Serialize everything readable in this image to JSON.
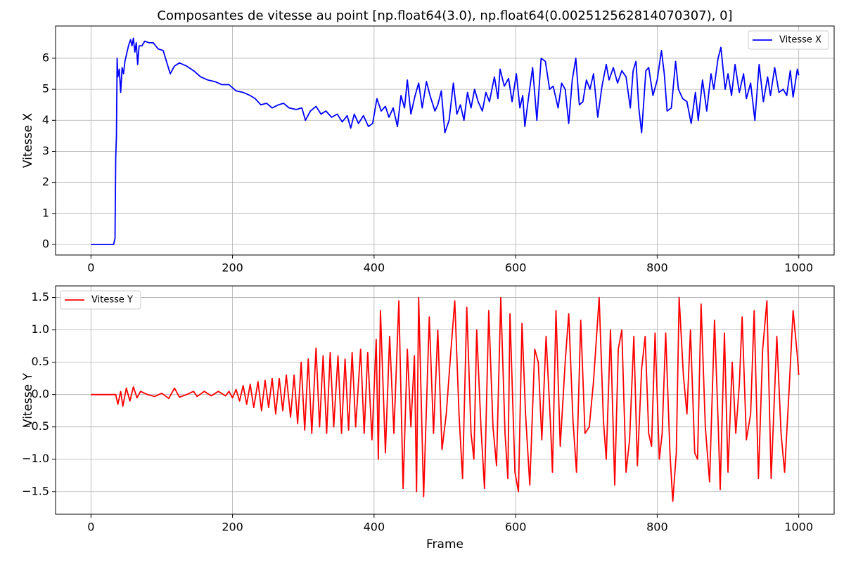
{
  "chart_data": [
    {
      "type": "line",
      "title": "Composantes de vitesse au point [np.float64(3.0), np.float64(0.002512562814070307), 0]",
      "ylabel": "Vitesse X",
      "x": [
        0,
        32,
        34,
        35,
        36,
        37,
        38,
        40,
        42,
        44,
        46,
        48,
        50,
        53,
        56,
        58,
        60,
        62,
        64,
        66,
        68,
        72,
        76,
        82,
        88,
        95,
        102,
        108,
        112,
        118,
        125,
        135,
        145,
        155,
        165,
        175,
        185,
        195,
        205,
        215,
        225,
        232,
        240,
        248,
        256,
        265,
        272,
        280,
        290,
        298,
        303,
        310,
        318,
        325,
        332,
        340,
        348,
        355,
        362,
        367,
        372,
        378,
        385,
        392,
        398,
        404,
        410,
        416,
        421,
        427,
        433,
        438,
        443,
        447,
        452,
        458,
        463,
        468,
        474,
        479,
        486,
        490,
        495,
        500,
        506,
        512,
        517,
        522,
        527,
        532,
        537,
        542,
        547,
        553,
        558,
        563,
        570,
        575,
        578,
        584,
        590,
        595,
        601,
        606,
        610,
        613,
        618,
        624,
        630,
        636,
        642,
        648,
        653,
        660,
        665,
        670,
        675,
        680,
        685,
        690,
        695,
        700,
        705,
        710,
        716,
        722,
        728,
        732,
        738,
        744,
        750,
        756,
        762,
        766,
        770,
        774,
        778,
        784,
        788,
        794,
        800,
        806,
        810,
        814,
        820,
        826,
        830,
        836,
        842,
        848,
        854,
        858,
        864,
        870,
        876,
        880,
        886,
        890,
        896,
        900,
        905,
        910,
        916,
        922,
        926,
        932,
        938,
        944,
        950,
        956,
        960,
        966,
        972,
        978,
        983,
        988,
        992,
        998,
        1000
      ],
      "series": [
        {
          "name": "Vitesse X",
          "color": "#0000ff",
          "values": [
            0,
            0,
            0.2,
            2.8,
            3.5,
            6.0,
            5.4,
            5.65,
            4.9,
            5.7,
            5.5,
            5.9,
            6.1,
            6.4,
            6.6,
            6.4,
            6.65,
            6.2,
            6.5,
            5.8,
            6.4,
            6.4,
            6.55,
            6.5,
            6.5,
            6.3,
            6.25,
            5.8,
            5.5,
            5.75,
            5.85,
            5.75,
            5.6,
            5.4,
            5.3,
            5.25,
            5.15,
            5.15,
            4.95,
            4.9,
            4.8,
            4.7,
            4.5,
            4.55,
            4.4,
            4.5,
            4.55,
            4.4,
            4.35,
            4.4,
            4.0,
            4.3,
            4.45,
            4.2,
            4.3,
            4.1,
            4.2,
            3.95,
            4.15,
            3.75,
            4.2,
            3.9,
            4.15,
            3.8,
            3.9,
            4.7,
            4.3,
            4.45,
            4.1,
            4.4,
            3.8,
            4.8,
            4.4,
            5.3,
            4.2,
            4.8,
            5.2,
            4.4,
            5.25,
            4.8,
            4.3,
            4.5,
            4.95,
            3.6,
            4.0,
            5.2,
            4.2,
            4.5,
            4.0,
            4.9,
            4.4,
            5.0,
            4.6,
            4.3,
            4.9,
            4.6,
            5.4,
            4.7,
            5.65,
            5.1,
            5.35,
            4.6,
            5.5,
            4.4,
            4.8,
            3.8,
            4.7,
            5.7,
            4.0,
            6.0,
            5.9,
            5.0,
            5.1,
            4.4,
            5.2,
            5.0,
            3.9,
            5.3,
            6.0,
            4.5,
            4.6,
            5.3,
            5.0,
            5.5,
            4.1,
            5.1,
            5.8,
            5.3,
            5.7,
            5.2,
            5.6,
            5.4,
            4.4,
            5.6,
            5.9,
            4.4,
            3.6,
            5.6,
            5.7,
            4.8,
            5.3,
            6.25,
            5.5,
            4.3,
            4.4,
            5.9,
            5.0,
            4.7,
            4.6,
            3.9,
            4.9,
            4.0,
            5.3,
            4.3,
            5.5,
            5.0,
            6.0,
            6.35,
            5.0,
            5.5,
            4.8,
            5.8,
            4.9,
            5.5,
            4.7,
            5.2,
            4.0,
            5.8,
            4.6,
            5.4,
            4.8,
            5.7,
            4.9,
            5.0,
            4.8,
            5.6,
            4.75,
            5.65,
            5.45
          ]
        }
      ],
      "xlim": [
        -50,
        1050
      ],
      "ylim": [
        -0.34,
        7.04
      ],
      "xticks": [
        0,
        200,
        400,
        600,
        800,
        1000
      ],
      "yticks": [
        0,
        1,
        2,
        3,
        4,
        5,
        6
      ],
      "grid": true,
      "legend": "upper right"
    },
    {
      "type": "line",
      "xlabel": "Frame",
      "ylabel": "Vitesse Y",
      "x": [
        0,
        35,
        38,
        42,
        45,
        50,
        55,
        60,
        65,
        70,
        80,
        90,
        100,
        110,
        118,
        125,
        135,
        145,
        150,
        160,
        170,
        180,
        190,
        195,
        200,
        205,
        210,
        215,
        220,
        225,
        230,
        236,
        241,
        246,
        251,
        256,
        261,
        266,
        271,
        276,
        282,
        287,
        292,
        297,
        302,
        307,
        312,
        318,
        323,
        328,
        333,
        338,
        343,
        349,
        354,
        359,
        364,
        369,
        374,
        381,
        386,
        391,
        397,
        403,
        406,
        409,
        416,
        422,
        428,
        435,
        441,
        447,
        452,
        457,
        460,
        463,
        470,
        478,
        484,
        490,
        496,
        502,
        508,
        514,
        520,
        525,
        531,
        537,
        541,
        545,
        551,
        556,
        562,
        568,
        573,
        579,
        585,
        589,
        592,
        599,
        604,
        609,
        614,
        620,
        627,
        632,
        637,
        643,
        649,
        652,
        657,
        663,
        670,
        675,
        681,
        686,
        692,
        698,
        704,
        710,
        718,
        724,
        728,
        734,
        740,
        745,
        750,
        756,
        761,
        767,
        772,
        778,
        783,
        788,
        792,
        797,
        803,
        807,
        812,
        818,
        822,
        827,
        831,
        837,
        842,
        847,
        853,
        857,
        862,
        868,
        874,
        881,
        886,
        889,
        895,
        900,
        906,
        911,
        916,
        920,
        926,
        932,
        937,
        943,
        949,
        955,
        961,
        969,
        975,
        980,
        986,
        992,
        998,
        1000
      ],
      "series": [
        {
          "name": "Vitesse Y",
          "color": "#ff0000",
          "values": [
            0,
            0,
            -0.15,
            0.05,
            -0.18,
            0.1,
            -0.1,
            0.12,
            -0.05,
            0.05,
            0,
            -0.03,
            0.02,
            -0.06,
            0.1,
            -0.04,
            0,
            0.05,
            -0.03,
            0.05,
            -0.02,
            0.05,
            -0.02,
            0.05,
            -0.05,
            0.08,
            -0.1,
            0.14,
            -0.15,
            0.16,
            -0.2,
            0.2,
            -0.25,
            0.22,
            -0.2,
            0.25,
            -0.3,
            0.25,
            -0.25,
            0.3,
            -0.35,
            0.3,
            -0.45,
            0.5,
            -0.55,
            0.55,
            -0.6,
            0.72,
            -0.5,
            0.6,
            -0.6,
            0.65,
            -0.5,
            0.6,
            -0.6,
            0.55,
            -0.55,
            0.65,
            -0.5,
            0.7,
            -0.6,
            0.65,
            -0.7,
            0.85,
            -1.0,
            1.3,
            -0.9,
            0.9,
            -0.6,
            1.45,
            -1.45,
            0.7,
            -0.5,
            0.6,
            -1.5,
            1.5,
            -1.58,
            1.2,
            -0.6,
            1.0,
            -0.85,
            -0.3,
            0.6,
            1.45,
            -0.3,
            -1.3,
            1.35,
            -0.6,
            -1.0,
            1.0,
            -0.5,
            -1.45,
            1.3,
            -0.5,
            -1.1,
            1.5,
            -0.6,
            -1.3,
            1.25,
            -1.2,
            -1.5,
            1.1,
            -0.3,
            -1.4,
            0.7,
            0.5,
            -0.7,
            0.9,
            -0.4,
            -1.2,
            1.3,
            -0.8,
            0.5,
            1.25,
            -0.4,
            -1.2,
            1.15,
            -0.6,
            -0.5,
            0.2,
            1.5,
            -0.4,
            -1.0,
            1.0,
            -1.4,
            0.7,
            1.0,
            -1.2,
            -0.7,
            0.9,
            -1.1,
            0.4,
            0.9,
            -0.6,
            -0.8,
            0.95,
            -1.0,
            -0.6,
            0.95,
            -0.9,
            -1.65,
            -0.9,
            1.5,
            0.3,
            -0.3,
            1.0,
            -0.9,
            -1.0,
            1.4,
            -0.5,
            -1.35,
            1.15,
            -0.4,
            -1.47,
            0.95,
            -1.2,
            0.5,
            -0.6,
            0.15,
            1.2,
            -0.7,
            -0.3,
            1.3,
            -1.3,
            0.7,
            1.45,
            -1.3,
            0.9,
            -0.6,
            -1.2,
            0.0,
            1.3,
            0.6,
            0.3
          ]
        }
      ],
      "xlim": [
        -50,
        1050
      ],
      "ylim": [
        -1.85,
        1.68
      ],
      "xticks": [
        0,
        200,
        400,
        600,
        800,
        1000
      ],
      "yticks": [
        {
          "value": -1.5,
          "label": "−1.5"
        },
        {
          "value": -1.0,
          "label": "−1.0"
        },
        {
          "value": -0.5,
          "label": "−0.5"
        },
        {
          "value": 0,
          "label": "0.0"
        },
        0.5,
        {
          "value": 1.0,
          "label": "1.0"
        },
        1.5
      ],
      "grid": true,
      "legend": "upper left"
    }
  ]
}
